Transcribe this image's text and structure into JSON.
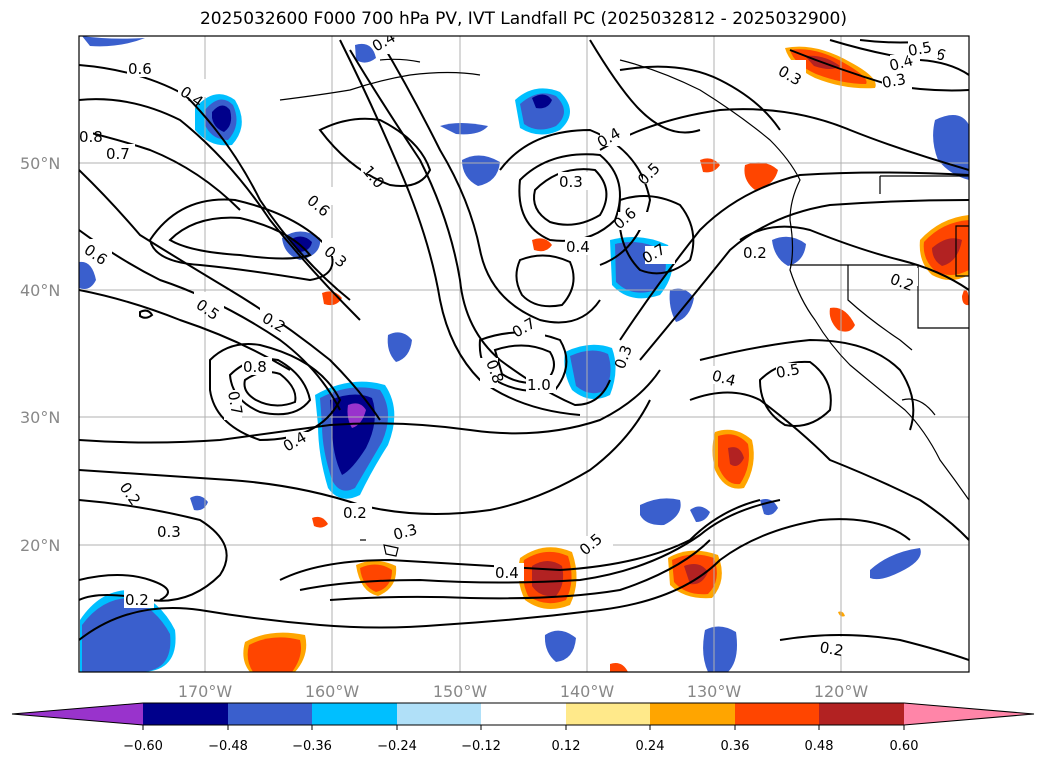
{
  "title": "2025032600 F000 700 hPa PV, IVT Landfall PC (2025032812 - 2025032900)",
  "lat_labels": [
    "50°N",
    "40°N",
    "30°N",
    "20°N"
  ],
  "lon_labels": [
    "170°W",
    "160°W",
    "150°W",
    "140°W",
    "130°W",
    "120°W"
  ],
  "colorbar": {
    "ticks": [
      "−0.60",
      "−0.48",
      "−0.36",
      "−0.24",
      "−0.12",
      "0.12",
      "0.24",
      "0.36",
      "0.48",
      "0.60"
    ],
    "colors": [
      "#9933cc",
      "#00008b",
      "#3a5fcd",
      "#00bfff",
      "#b0e0f8",
      "#ffffff",
      "#ffe98a",
      "#ffa500",
      "#ff4500",
      "#b22222",
      "#ff85a8"
    ]
  },
  "contour_labels": [
    "0.6",
    "0.4",
    "0.8",
    "0.7",
    "1.0",
    "0.6",
    "0.3",
    "0.5",
    "0.2",
    "0.8",
    "0.7",
    "0.4",
    "0.2",
    "0.3",
    "0.2",
    "0.3",
    "0.4",
    "0.5",
    "0.8",
    "1.0",
    "0.7",
    "0.3",
    "0.4",
    "0.6",
    "0.7",
    "0.4",
    "0.5",
    "0.3",
    "0.5",
    "0.6",
    "0.4",
    "0.3",
    "0.2",
    "0.2",
    "0.4",
    "0.5",
    "0.3",
    "0.2",
    "0.6",
    "0.4",
    "0.2"
  ]
}
